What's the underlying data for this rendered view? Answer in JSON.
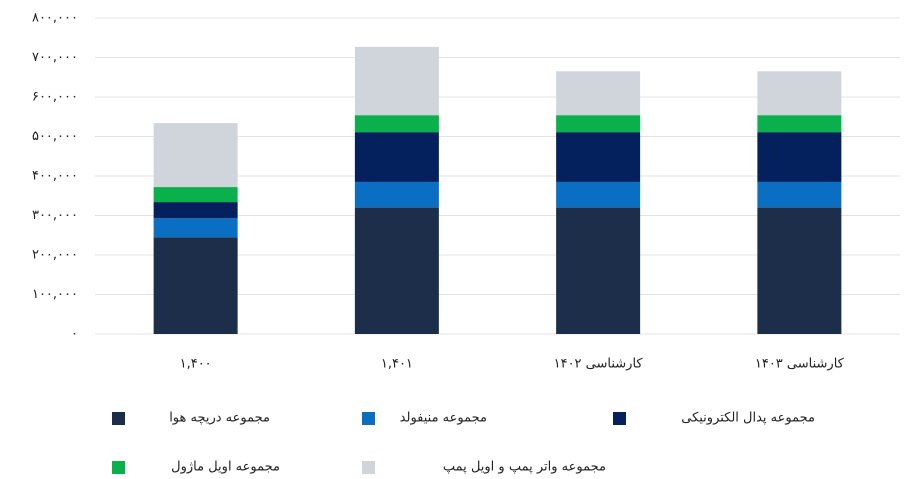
{
  "chart_data": {
    "type": "stacked_bar",
    "categories": [
      "۱,۴۰۰",
      "۱,۴۰۱",
      "کارشناسی ۱۴۰۲",
      "کارشناسی ۱۴۰۳"
    ],
    "series": [
      {
        "name": "مجموعه دریچه هوا",
        "color": "#1c2e4a",
        "values": [
          245000,
          320000,
          320000,
          320000
        ]
      },
      {
        "name": "مجموعه منیفولد",
        "color": "#0a6fc2",
        "values": [
          48000,
          65000,
          65000,
          65000
        ]
      },
      {
        "name": "مجموعه پدال الکترونیکی",
        "color": "#04215e",
        "values": [
          41000,
          126000,
          126000,
          126000
        ]
      },
      {
        "name": "مجموعه اویل ماژول",
        "color": "#0ab04b",
        "values": [
          38000,
          43000,
          43000,
          43000
        ]
      },
      {
        "name": "مجموعه واتر پمپ و اویل پمپ",
        "color": "#d0d5dc",
        "values": [
          162000,
          173000,
          111000,
          111000
        ]
      }
    ],
    "ylim": [
      0,
      800000
    ],
    "yticks": [
      {
        "value": 0,
        "label": "۰"
      },
      {
        "value": 100000,
        "label": "۱۰۰,۰۰۰"
      },
      {
        "value": 200000,
        "label": "۲۰۰,۰۰۰"
      },
      {
        "value": 300000,
        "label": "۳۰۰,۰۰۰"
      },
      {
        "value": 400000,
        "label": "۴۰۰,۰۰۰"
      },
      {
        "value": 500000,
        "label": "۵۰۰,۰۰۰"
      },
      {
        "value": 600000,
        "label": "۶۰۰,۰۰۰"
      },
      {
        "value": 700000,
        "label": "۷۰۰,۰۰۰"
      },
      {
        "value": 800000,
        "label": "۸۰۰,۰۰۰"
      }
    ],
    "grid": true
  }
}
